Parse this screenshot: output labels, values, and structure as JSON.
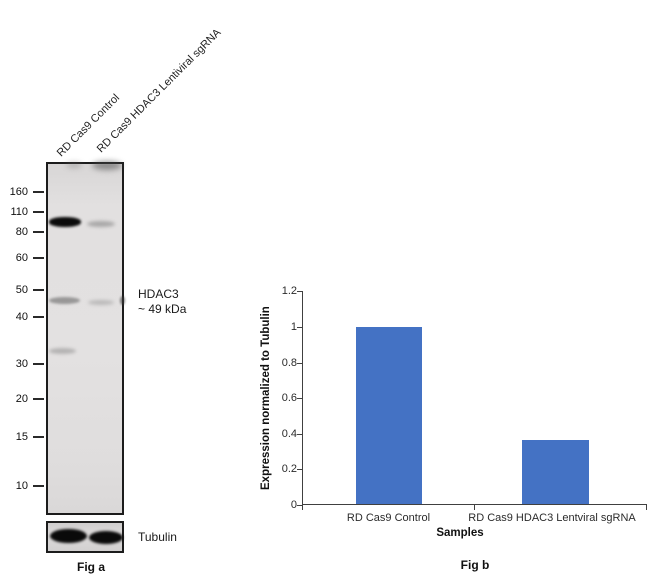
{
  "figure_a": {
    "caption": "Fig a",
    "lane_labels": [
      "RD Cas9 Control",
      "RD Cas9 HDAC3 Lentiviral sgRNA"
    ],
    "mw_markers": [
      "160",
      "110",
      "80",
      "60",
      "50",
      "40",
      "30",
      "20",
      "15",
      "10"
    ],
    "target_annotation": {
      "name": "HDAC3",
      "size": "~ 49 kDa"
    },
    "loading_control": "Tubulin"
  },
  "figure_b": {
    "caption": "Fig b"
  },
  "chart_data": {
    "type": "bar",
    "categories": [
      "RD Cas9 Control",
      "RD Cas9 HDAC3 Lentviral sgRNA"
    ],
    "values": [
      1,
      0.36
    ],
    "title": "",
    "xlabel": "Samples",
    "ylabel": "Expression normalized to Tubulin",
    "ylim": [
      0,
      1.2
    ],
    "yticks": [
      0,
      0.2,
      0.4,
      0.6,
      0.8,
      1,
      1.2
    ],
    "ytick_labels": [
      "0",
      "0.2",
      "0.4",
      "0.6",
      "0.8",
      "1",
      "1.2"
    ],
    "bar_color": "#4472C4",
    "axis_color": "#404040",
    "grid": false,
    "legend": "none"
  }
}
